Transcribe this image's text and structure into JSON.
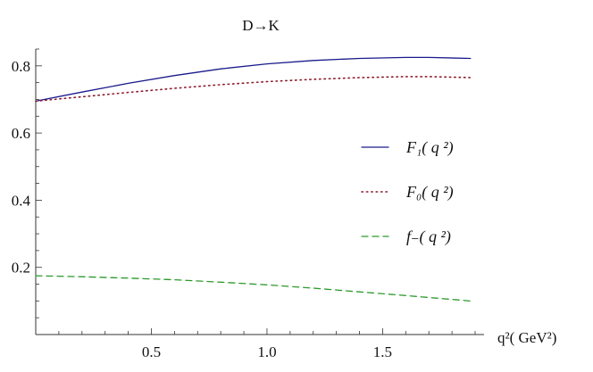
{
  "chart_data": {
    "type": "line",
    "title": "D→K",
    "xlabel": "q²( GeV²)",
    "ylabel": "",
    "xlim": [
      0,
      1.9
    ],
    "ylim": [
      0.0,
      0.85
    ],
    "x_ticks": [
      0.5,
      1.0,
      1.5
    ],
    "x_tick_labels": [
      "0.5",
      "1.0",
      "1.5"
    ],
    "y_ticks": [
      0.2,
      0.4,
      0.6,
      0.8
    ],
    "y_tick_labels": [
      "0.2",
      "0.4",
      "0.6",
      "0.8"
    ],
    "legend_position": "right",
    "series": [
      {
        "name": "F₁( q ²)",
        "color": "#1a1a8c",
        "style": "solid",
        "x": [
          0.0,
          0.2,
          0.4,
          0.6,
          0.8,
          1.0,
          1.2,
          1.4,
          1.6,
          1.7,
          1.88
        ],
        "y": [
          0.695,
          0.722,
          0.748,
          0.771,
          0.791,
          0.806,
          0.816,
          0.822,
          0.825,
          0.825,
          0.822
        ]
      },
      {
        "name": "F₀( q ²)",
        "color": "#8b1a2a",
        "style": "dotted",
        "x": [
          0.0,
          0.2,
          0.4,
          0.6,
          0.8,
          1.0,
          1.2,
          1.4,
          1.6,
          1.7,
          1.88
        ],
        "y": [
          0.695,
          0.708,
          0.721,
          0.733,
          0.744,
          0.753,
          0.76,
          0.765,
          0.768,
          0.768,
          0.765
        ]
      },
      {
        "name": "f₋( q ²)",
        "color": "#2a9a2a",
        "style": "dashed",
        "x": [
          0.0,
          0.2,
          0.4,
          0.6,
          0.8,
          1.0,
          1.2,
          1.4,
          1.6,
          1.88
        ],
        "y": [
          0.175,
          0.172,
          0.168,
          0.163,
          0.156,
          0.148,
          0.138,
          0.127,
          0.116,
          0.1
        ]
      }
    ]
  }
}
